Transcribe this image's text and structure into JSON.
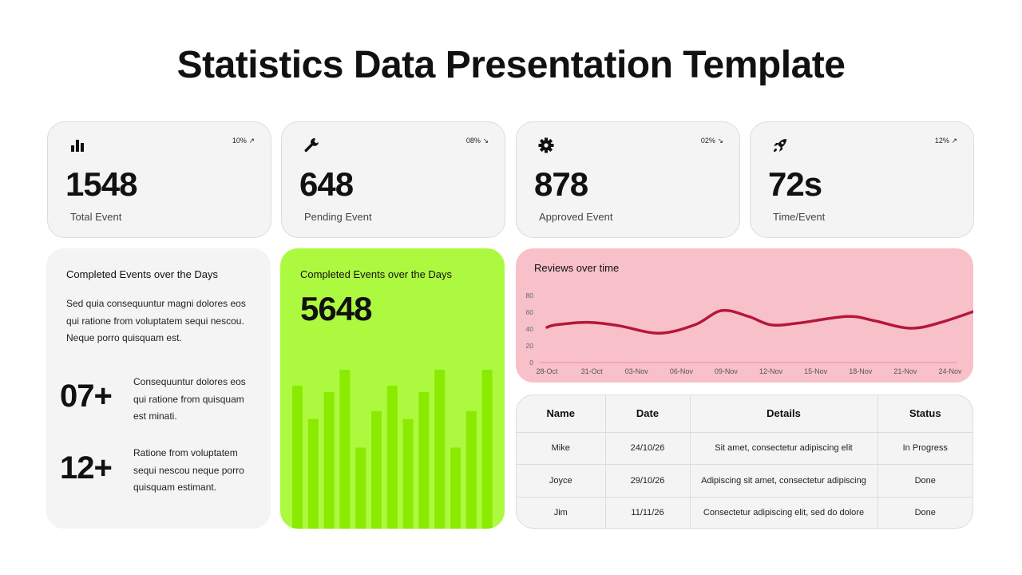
{
  "title": "Statistics Data Presentation Template",
  "kpis": [
    {
      "icon": "bar-chart-icon",
      "trend": "10%",
      "trend_dir": "up",
      "value": "1548",
      "label": "Total Event"
    },
    {
      "icon": "wrench-icon",
      "trend": "08%",
      "trend_dir": "down",
      "value": "648",
      "label": "Pending Event"
    },
    {
      "icon": "gear-icon",
      "trend": "02%",
      "trend_dir": "down",
      "value": "878",
      "label": "Approved Event"
    },
    {
      "icon": "rocket-icon",
      "trend": "12%",
      "trend_dir": "up",
      "value": "72s",
      "label": "Time/Event"
    }
  ],
  "arrows": {
    "up": "↗",
    "down": "↘"
  },
  "info": {
    "heading": "Completed Events over the Days",
    "paragraph": "Sed quia consequuntur magni dolores eos qui ratione from voluptatem sequi nescou. Neque porro quisquam est.",
    "stats": [
      {
        "value": "07+",
        "text": "Consequuntur dolores eos qui ratione from quisquam est minati."
      },
      {
        "value": "12+",
        "text": "Ratione from voluptatem sequi nescou neque porro quisquam estimant."
      }
    ]
  },
  "green_card": {
    "heading": "Completed Events over the Days",
    "value": "5648"
  },
  "table": {
    "headers": [
      "Name",
      "Date",
      "Details",
      "Status"
    ],
    "rows": [
      [
        "Mike",
        "24/10/26",
        "Sit amet, consectetur adipiscing elit",
        "In Progress"
      ],
      [
        "Joyce",
        "29/10/26",
        "Adipiscing sit amet, consectetur adipiscing",
        "Done"
      ],
      [
        "Jim",
        "11/11/26",
        "Consectetur adipiscing elit, sed do dolore",
        "Done"
      ]
    ]
  },
  "colors": {
    "green_bg": "#adf93f",
    "green_bar": "#8aeb00",
    "pink_bg": "#f8c0c9",
    "line": "#b5173a",
    "card_bg": "#f4f4f4"
  },
  "chart_data": [
    {
      "type": "bar",
      "title": "Completed Events over the Days",
      "categories": [
        "1",
        "2",
        "3",
        "4",
        "5",
        "6",
        "7",
        "8",
        "9",
        "10",
        "11",
        "12",
        "13"
      ],
      "values": [
        90,
        69,
        86,
        100,
        51,
        74,
        90,
        69,
        86,
        100,
        51,
        74,
        100
      ],
      "ylim": [
        0,
        100
      ],
      "grid": false
    },
    {
      "type": "line",
      "title": "Reviews over time",
      "x": [
        "28-Oct",
        "31-Oct",
        "03-Nov",
        "06-Nov",
        "09-Nov",
        "12-Nov",
        "15-Nov",
        "18-Nov",
        "21-Nov",
        "24-Nov"
      ],
      "xlabel": "",
      "ylabel": "",
      "yticks": [
        0,
        20,
        40,
        60,
        80
      ],
      "ylim": [
        0,
        80
      ],
      "series": [
        {
          "name": "Reviews",
          "points": [
            [
              0,
              42
            ],
            [
              0.2,
              45
            ],
            [
              0.9,
              48
            ],
            [
              1.6,
              44
            ],
            [
              2.5,
              35
            ],
            [
              3.3,
              45
            ],
            [
              3.9,
              62
            ],
            [
              4.5,
              55
            ],
            [
              5.0,
              45
            ],
            [
              5.6,
              47
            ],
            [
              6.7,
              55
            ],
            [
              7.3,
              50
            ],
            [
              8.1,
              41
            ],
            [
              8.8,
              48
            ],
            [
              9.9,
              68
            ]
          ]
        }
      ],
      "grid": false,
      "legend": "none"
    }
  ]
}
